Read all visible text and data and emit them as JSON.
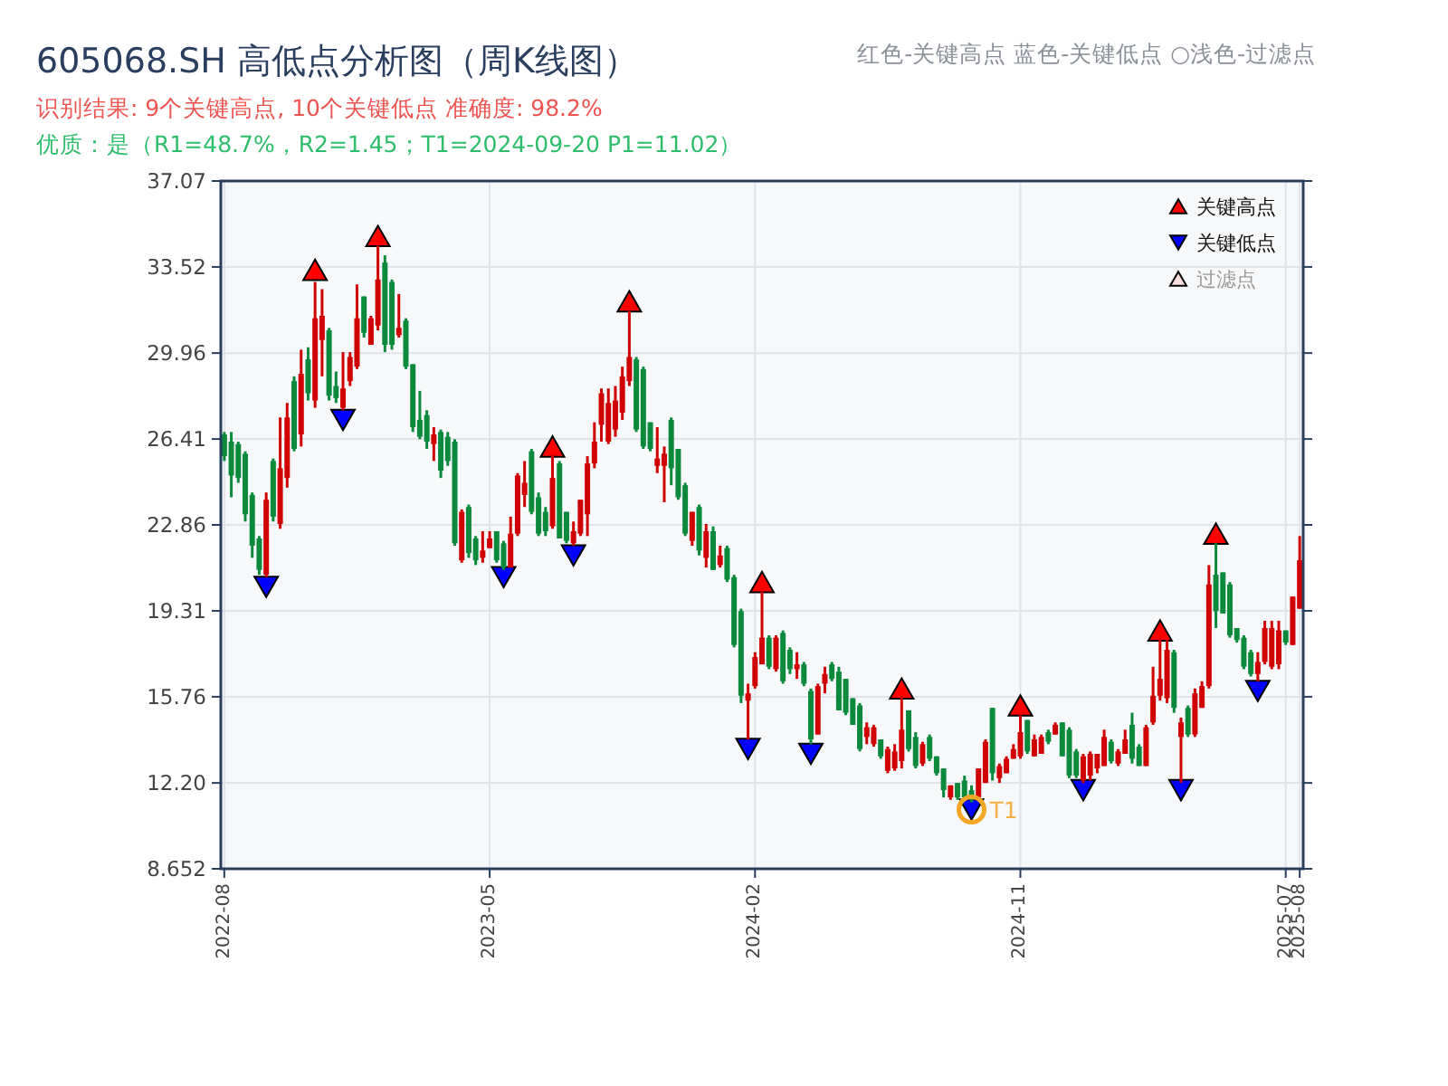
{
  "chart_data": {
    "type": "candlestick",
    "title": "605068.SH 高低点分析图（周K线图）",
    "subtitle": "识别结果: 9个关键高点, 10个关键低点  准确度: 98.2%",
    "annotations": [
      "优质：是（R1=48.7%，R2=1.45；T1=2024-09-20 P1=11.02）",
      "红色-关键高点      蓝色-关键低点  ○浅色-过滤点",
      "T1"
    ],
    "categories": [
      "2022-08",
      null,
      null,
      null,
      null,
      null,
      null,
      null,
      null,
      null,
      null,
      null,
      null,
      null,
      null,
      null,
      null,
      null,
      null,
      null,
      null,
      null,
      null,
      null,
      null,
      null,
      null,
      null,
      null,
      null,
      null,
      null,
      null,
      null,
      null,
      null,
      null,
      null,
      "2023-05",
      null,
      null,
      null,
      null,
      null,
      null,
      null,
      null,
      null,
      null,
      null,
      null,
      null,
      null,
      null,
      null,
      null,
      null,
      null,
      null,
      null,
      null,
      null,
      null,
      null,
      null,
      null,
      null,
      null,
      null,
      null,
      null,
      null,
      null,
      null,
      null,
      null,
      "2024-02",
      null,
      null,
      null,
      null,
      null,
      null,
      null,
      null,
      null,
      null,
      null,
      null,
      null,
      null,
      null,
      null,
      null,
      null,
      null,
      null,
      null,
      null,
      null,
      null,
      null,
      null,
      null,
      null,
      null,
      null,
      null,
      null,
      null,
      null,
      null,
      null,
      null,
      "2024-11",
      null,
      null,
      null,
      null,
      null,
      null,
      null,
      null,
      null,
      null,
      null,
      null,
      null,
      null,
      null,
      null,
      null,
      null,
      null,
      null,
      null,
      null,
      null,
      null,
      null,
      null,
      null,
      null,
      null,
      null,
      null,
      null,
      null,
      null,
      null,
      null,
      null,
      "2025-07",
      null,
      "2025-08"
    ],
    "ylim": [
      8.652,
      37.07
    ],
    "yticks": [
      8.652,
      {
        "value": 12.2,
        "label": "12.20"
      },
      15.76,
      19.31,
      22.86,
      26.41,
      29.96,
      33.52,
      37.07
    ],
    "grid": true,
    "legend": "top right",
    "ohlc": [
      [
        26.6,
        26.7,
        25.5,
        25.7
      ],
      [
        26.3,
        26.7,
        24.0,
        24.9
      ],
      [
        26.2,
        26.3,
        24.6,
        24.8
      ],
      [
        25.8,
        25.9,
        23.0,
        23.3
      ],
      [
        24.1,
        24.2,
        21.5,
        22.0
      ],
      [
        22.3,
        22.4,
        20.8,
        21.0
      ],
      [
        20.8,
        24.2,
        20.7,
        23.9
      ],
      [
        25.5,
        25.6,
        23.0,
        23.2
      ],
      [
        22.9,
        27.3,
        22.7,
        25.2
      ],
      [
        24.8,
        27.9,
        24.4,
        27.3
      ],
      [
        28.8,
        29.0,
        25.9,
        26.0
      ],
      [
        26.6,
        30.1,
        26.1,
        29.1
      ],
      [
        29.7,
        30.2,
        28.0,
        28.3
      ],
      [
        28.0,
        32.9,
        27.7,
        31.4
      ],
      [
        30.5,
        32.6,
        29.0,
        31.5
      ],
      [
        30.9,
        31.0,
        28.0,
        28.2
      ],
      [
        28.6,
        29.2,
        27.9,
        28.1
      ],
      [
        27.7,
        30.0,
        27.6,
        28.5
      ],
      [
        28.8,
        30.0,
        28.6,
        29.8
      ],
      [
        29.4,
        32.8,
        29.3,
        31.4
      ],
      [
        32.3,
        32.3,
        30.6,
        30.8
      ],
      [
        30.3,
        31.5,
        30.3,
        31.4
      ],
      [
        31.1,
        34.4,
        30.9,
        33.0
      ],
      [
        33.7,
        34.0,
        30.0,
        30.3
      ],
      [
        32.9,
        33.0,
        30.1,
        30.3
      ],
      [
        30.7,
        32.4,
        30.6,
        31.0
      ],
      [
        31.3,
        31.4,
        29.3,
        29.4
      ],
      [
        29.5,
        29.5,
        26.7,
        26.9
      ],
      [
        27.2,
        28.4,
        26.4,
        26.5
      ],
      [
        27.4,
        27.6,
        26.0,
        26.3
      ],
      [
        26.2,
        26.9,
        25.5,
        26.6
      ],
      [
        26.7,
        26.8,
        24.8,
        25.1
      ],
      [
        26.5,
        26.7,
        25.3,
        25.5
      ],
      [
        26.3,
        26.4,
        22.0,
        22.1
      ],
      [
        21.4,
        23.5,
        21.3,
        23.4
      ],
      [
        23.6,
        23.7,
        21.5,
        21.7
      ],
      [
        22.3,
        22.4,
        21.2,
        21.4
      ],
      [
        21.5,
        22.6,
        21.3,
        21.8
      ],
      [
        21.9,
        22.6,
        21.9,
        22.3
      ],
      [
        22.6,
        22.6,
        21.3,
        21.4
      ],
      [
        22.1,
        22.2,
        21.0,
        21.1
      ],
      [
        21.1,
        23.2,
        21.1,
        22.5
      ],
      [
        22.5,
        25.0,
        22.4,
        24.9
      ],
      [
        24.1,
        25.5,
        23.6,
        24.6
      ],
      [
        25.9,
        26.0,
        23.3,
        23.4
      ],
      [
        24.0,
        24.2,
        22.4,
        22.5
      ],
      [
        23.4,
        23.6,
        22.4,
        22.6
      ],
      [
        22.8,
        25.8,
        22.7,
        24.8
      ],
      [
        25.4,
        25.5,
        22.3,
        22.3
      ],
      [
        23.4,
        23.4,
        22.1,
        22.2
      ],
      [
        22.1,
        23.0,
        22.0,
        22.6
      ],
      [
        22.5,
        23.9,
        22.4,
        23.9
      ],
      [
        23.3,
        25.7,
        22.4,
        25.4
      ],
      [
        25.4,
        27.1,
        25.2,
        26.3
      ],
      [
        27.0,
        28.5,
        26.3,
        28.3
      ],
      [
        26.3,
        28.5,
        26.2,
        27.9
      ],
      [
        26.8,
        28.6,
        26.5,
        28.0
      ],
      [
        27.5,
        29.4,
        27.2,
        29.0
      ],
      [
        28.8,
        31.7,
        28.6,
        29.8
      ],
      [
        29.7,
        29.8,
        26.7,
        26.8
      ],
      [
        29.3,
        29.4,
        26.0,
        26.1
      ],
      [
        27.1,
        27.1,
        25.9,
        26.0
      ],
      [
        25.3,
        26.9,
        25.0,
        25.6
      ],
      [
        25.3,
        26.1,
        23.8,
        25.8
      ],
      [
        27.2,
        27.3,
        24.5,
        25.2
      ],
      [
        26.0,
        26.0,
        23.9,
        24.0
      ],
      [
        24.5,
        24.6,
        22.4,
        22.5
      ],
      [
        22.2,
        23.4,
        22.0,
        23.4
      ],
      [
        23.6,
        23.7,
        21.6,
        21.8
      ],
      [
        21.5,
        22.9,
        21.1,
        22.6
      ],
      [
        22.6,
        22.8,
        21.0,
        21.0
      ],
      [
        21.2,
        22.0,
        21.1,
        21.6
      ],
      [
        21.9,
        22.0,
        20.5,
        20.6
      ],
      [
        20.7,
        20.8,
        17.8,
        17.9
      ],
      [
        19.3,
        19.4,
        15.5,
        15.8
      ],
      [
        15.6,
        16.3,
        14.0,
        15.9
      ],
      [
        16.2,
        17.6,
        16.1,
        17.4
      ],
      [
        17.1,
        20.1,
        17.1,
        18.2
      ],
      [
        18.2,
        18.3,
        16.9,
        17.0
      ],
      [
        16.9,
        18.3,
        16.8,
        18.2
      ],
      [
        18.4,
        18.5,
        16.3,
        16.4
      ],
      [
        17.7,
        17.8,
        16.7,
        16.9
      ],
      [
        16.9,
        17.6,
        16.5,
        17.1
      ],
      [
        17.1,
        17.2,
        16.2,
        16.3
      ],
      [
        16.0,
        16.1,
        13.8,
        14.0
      ],
      [
        14.2,
        16.3,
        14.2,
        16.2
      ],
      [
        16.3,
        17.0,
        15.9,
        16.7
      ],
      [
        17.1,
        17.2,
        16.4,
        16.5
      ],
      [
        16.8,
        17.0,
        15.2,
        15.2
      ],
      [
        16.5,
        16.5,
        15.0,
        15.1
      ],
      [
        15.7,
        15.7,
        14.6,
        14.6
      ],
      [
        15.4,
        15.5,
        13.5,
        13.6
      ],
      [
        14.1,
        14.7,
        13.8,
        14.5
      ],
      [
        13.8,
        14.6,
        13.7,
        14.5
      ],
      [
        14.0,
        14.0,
        13.2,
        13.3
      ],
      [
        12.7,
        13.7,
        12.6,
        13.6
      ],
      [
        12.8,
        13.8,
        12.7,
        13.5
      ],
      [
        13.1,
        15.8,
        12.8,
        14.4
      ],
      [
        15.2,
        15.2,
        13.5,
        13.6
      ],
      [
        14.1,
        14.3,
        12.8,
        12.9
      ],
      [
        13.0,
        13.9,
        12.9,
        13.8
      ],
      [
        14.1,
        14.2,
        13.1,
        13.2
      ],
      [
        13.3,
        13.3,
        12.5,
        12.6
      ],
      [
        12.8,
        12.8,
        11.6,
        11.9
      ],
      [
        11.6,
        12.1,
        11.5,
        12.1
      ],
      [
        12.2,
        12.2,
        11.5,
        11.6
      ],
      [
        12.3,
        12.5,
        11.5,
        11.6
      ],
      [
        11.9,
        12.1,
        11.4,
        11.5
      ],
      [
        11.6,
        12.8,
        11.5,
        12.8
      ],
      [
        12.2,
        14.0,
        12.2,
        13.9
      ],
      [
        15.3,
        15.3,
        12.3,
        12.6
      ],
      [
        12.4,
        13.0,
        12.2,
        12.9
      ],
      [
        12.6,
        13.3,
        12.6,
        13.2
      ],
      [
        13.2,
        13.8,
        13.2,
        13.6
      ],
      [
        13.3,
        15.0,
        13.2,
        14.3
      ],
      [
        14.8,
        14.8,
        13.4,
        13.5
      ],
      [
        13.3,
        14.2,
        13.3,
        14.0
      ],
      [
        13.4,
        14.2,
        13.4,
        14.1
      ],
      [
        14.3,
        14.4,
        13.8,
        13.9
      ],
      [
        14.2,
        14.7,
        14.2,
        14.6
      ],
      [
        14.7,
        14.7,
        13.3,
        13.3
      ],
      [
        14.4,
        14.5,
        12.4,
        12.5
      ],
      [
        13.5,
        13.6,
        12.4,
        12.5
      ],
      [
        12.3,
        13.4,
        12.2,
        13.3
      ],
      [
        12.5,
        13.5,
        12.3,
        13.4
      ],
      [
        12.8,
        13.4,
        12.6,
        13.4
      ],
      [
        12.9,
        14.4,
        12.9,
        14.1
      ],
      [
        13.9,
        14.0,
        13.0,
        13.1
      ],
      [
        13.0,
        13.6,
        12.9,
        13.5
      ],
      [
        13.4,
        14.4,
        13.4,
        14.0
      ],
      [
        14.6,
        15.1,
        13.0,
        13.2
      ],
      [
        13.7,
        13.8,
        12.9,
        12.9
      ],
      [
        12.9,
        14.6,
        12.9,
        14.5
      ],
      [
        14.7,
        17.0,
        14.6,
        15.8
      ],
      [
        15.8,
        18.2,
        15.6,
        16.5
      ],
      [
        15.7,
        18.1,
        15.5,
        17.7
      ],
      [
        17.6,
        17.7,
        15.1,
        15.3
      ],
      [
        14.1,
        14.9,
        12.2,
        14.7
      ],
      [
        15.3,
        15.4,
        14.1,
        14.2
      ],
      [
        14.2,
        16.1,
        14.1,
        15.9
      ],
      [
        15.3,
        16.4,
        15.3,
        16.2
      ],
      [
        16.2,
        21.2,
        16.1,
        20.4
      ],
      [
        20.8,
        22.1,
        18.6,
        19.3
      ],
      [
        20.9,
        20.9,
        19.2,
        19.2
      ],
      [
        20.4,
        20.5,
        18.2,
        18.3
      ],
      [
        18.6,
        18.6,
        18.0,
        18.1
      ],
      [
        18.2,
        18.3,
        16.9,
        17.0
      ],
      [
        17.6,
        17.7,
        16.6,
        16.7
      ],
      [
        16.7,
        17.6,
        16.4,
        17.2
      ],
      [
        17.2,
        18.9,
        17.1,
        18.6
      ],
      [
        17.0,
        18.9,
        16.9,
        18.6
      ],
      [
        17.1,
        18.9,
        16.9,
        18.5
      ],
      [
        18.5,
        18.5,
        17.9,
        18.0
      ],
      [
        17.9,
        19.9,
        17.9,
        19.9
      ],
      [
        19.4,
        22.4,
        19.4,
        21.4
      ]
    ],
    "series": [
      {
        "name": "关键高点",
        "type": "scatter",
        "marker": "triangle",
        "color": "#ff0000",
        "values": [
          null,
          null,
          null,
          null,
          null,
          null,
          null,
          null,
          null,
          null,
          null,
          null,
          null,
          33.4,
          null,
          null,
          null,
          null,
          null,
          null,
          null,
          null,
          34.8,
          null,
          null,
          null,
          null,
          null,
          null,
          null,
          null,
          null,
          null,
          null,
          null,
          null,
          null,
          null,
          null,
          null,
          null,
          null,
          null,
          null,
          null,
          null,
          null,
          26.1,
          null,
          null,
          null,
          null,
          null,
          null,
          null,
          null,
          null,
          null,
          32.1,
          null,
          null,
          null,
          null,
          null,
          null,
          null,
          null,
          null,
          null,
          null,
          null,
          null,
          null,
          null,
          null,
          null,
          null,
          20.5,
          null,
          null,
          null,
          null,
          null,
          null,
          null,
          null,
          null,
          null,
          null,
          null,
          null,
          null,
          null,
          null,
          null,
          null,
          null,
          16.1,
          null,
          null,
          null,
          null,
          null,
          null,
          null,
          null,
          null,
          null,
          null,
          null,
          null,
          null,
          null,
          null,
          15.4,
          null,
          null,
          null,
          null,
          null,
          null,
          null,
          null,
          null,
          null,
          null,
          null,
          null,
          null,
          null,
          null,
          null,
          null,
          null,
          18.5,
          null,
          null,
          null,
          null,
          null,
          null,
          null,
          22.5,
          null,
          null,
          null,
          null,
          null,
          null,
          null,
          null,
          null,
          null,
          null,
          null
        ]
      },
      {
        "name": "关键低点",
        "type": "scatter",
        "marker": "triangle-down",
        "color": "#0000ff",
        "values": [
          null,
          null,
          null,
          null,
          null,
          null,
          20.3,
          null,
          null,
          null,
          null,
          null,
          null,
          null,
          null,
          null,
          null,
          27.2,
          null,
          null,
          null,
          null,
          null,
          null,
          null,
          null,
          null,
          null,
          null,
          null,
          null,
          null,
          null,
          null,
          null,
          null,
          null,
          null,
          null,
          null,
          20.7,
          null,
          null,
          null,
          null,
          null,
          null,
          null,
          null,
          null,
          21.6,
          null,
          null,
          null,
          null,
          null,
          null,
          null,
          null,
          null,
          null,
          null,
          null,
          null,
          null,
          null,
          null,
          null,
          null,
          null,
          null,
          null,
          null,
          null,
          null,
          13.6,
          null,
          null,
          null,
          null,
          null,
          null,
          null,
          null,
          13.4,
          null,
          null,
          null,
          null,
          null,
          null,
          null,
          null,
          null,
          null,
          null,
          null,
          null,
          null,
          null,
          null,
          null,
          null,
          null,
          null,
          null,
          null,
          11.1,
          null,
          null,
          null,
          null,
          null,
          null,
          null,
          null,
          null,
          null,
          null,
          null,
          null,
          null,
          null,
          11.9,
          null,
          null,
          null,
          null,
          null,
          null,
          null,
          null,
          null,
          null,
          null,
          null,
          null,
          11.9,
          null,
          null,
          null,
          null,
          null,
          null,
          null,
          null,
          null,
          null,
          16.0,
          null,
          null,
          null,
          null,
          null,
          null
        ]
      },
      {
        "name": "过滤点",
        "type": "scatter",
        "marker": "triangle",
        "color": "#ffe0e0",
        "values": [
          null,
          null,
          null,
          null,
          null,
          null,
          null,
          null,
          null,
          null,
          null,
          null,
          null,
          null,
          null,
          null,
          null,
          null,
          null,
          null,
          null,
          null,
          null,
          null,
          null,
          null,
          null,
          null,
          null,
          null,
          null,
          null,
          null,
          null,
          null,
          null,
          null,
          null,
          null,
          null,
          null,
          null,
          null,
          null,
          null,
          null,
          null,
          null,
          null,
          null,
          null,
          null,
          null,
          null,
          null,
          null,
          null,
          null,
          null,
          null,
          null,
          null,
          null,
          null,
          null,
          null,
          null,
          null,
          null,
          null,
          null,
          null,
          null,
          null,
          null,
          null,
          null,
          null,
          null,
          null,
          null,
          null,
          null,
          null,
          null,
          null,
          null,
          null,
          null,
          null,
          null,
          null,
          null,
          null,
          null,
          null,
          null,
          null,
          null,
          null,
          null,
          null,
          null,
          null,
          null,
          null,
          null,
          null,
          null,
          null,
          null,
          null,
          null,
          null,
          null,
          null,
          null,
          null,
          null,
          null,
          null,
          null,
          null,
          null,
          null,
          null,
          null,
          null,
          null,
          null,
          null,
          null,
          null,
          null,
          null,
          null,
          null,
          null,
          null,
          null,
          null,
          null,
          null,
          null,
          null,
          null,
          null,
          null,
          null,
          null,
          null,
          null,
          null,
          null,
          null
        ]
      }
    ]
  }
}
